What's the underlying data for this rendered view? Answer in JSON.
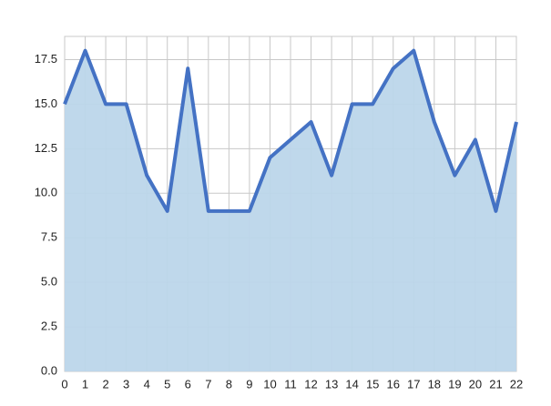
{
  "chart_data": {
    "type": "area",
    "x": [
      0,
      1,
      2,
      3,
      4,
      5,
      6,
      7,
      8,
      9,
      10,
      11,
      12,
      13,
      14,
      15,
      16,
      17,
      18,
      19,
      20,
      21,
      22
    ],
    "values": [
      15,
      18,
      15,
      15,
      11,
      9,
      17,
      9,
      9,
      9,
      12,
      13,
      14,
      11,
      15,
      15,
      17,
      18,
      14,
      11,
      13,
      9,
      14
    ],
    "color": "#4472c4",
    "fill_color": "#bcd6ea",
    "xlim": [
      0,
      22
    ],
    "xticks": [
      0,
      1,
      2,
      3,
      4,
      5,
      6,
      7,
      8,
      9,
      10,
      11,
      12,
      13,
      14,
      15,
      16,
      17,
      18,
      19,
      20,
      21,
      22
    ],
    "ylim": [
      0,
      18.8
    ],
    "yticks": [
      {
        "value": 0,
        "label": "0.0"
      },
      {
        "value": 2.5,
        "label": "2.5"
      },
      {
        "value": 5,
        "label": "5.0"
      },
      {
        "value": 7.5,
        "label": "7.5"
      },
      {
        "value": 10,
        "label": "10.0"
      },
      {
        "value": 12.5,
        "label": "12.5"
      },
      {
        "value": 15,
        "label": "15.0"
      },
      {
        "value": 17.5,
        "label": "17.5"
      }
    ],
    "grid": true
  }
}
